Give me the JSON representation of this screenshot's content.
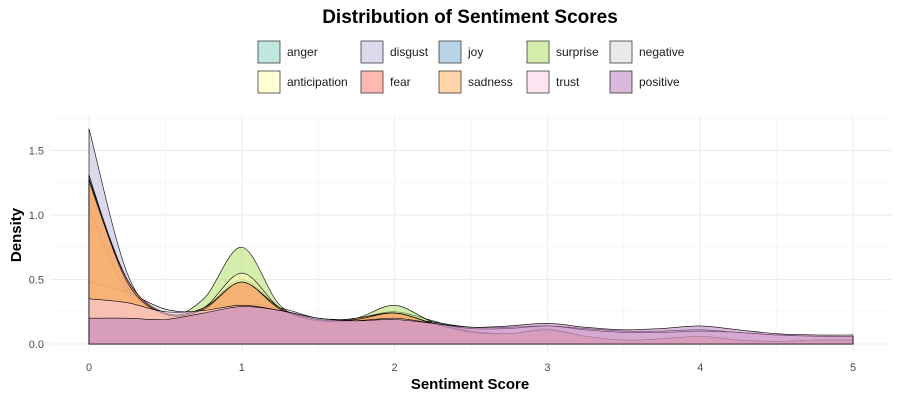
{
  "chart_data": {
    "type": "area",
    "subtype": "density",
    "title": "Distribution of Sentiment Scores",
    "xlabel": "Sentiment Score",
    "ylabel": "Density",
    "xlim": [
      0,
      5
    ],
    "ylim": [
      0,
      1.7
    ],
    "xticks": [
      0,
      1,
      2,
      3,
      4,
      5
    ],
    "yticks": [
      0.0,
      0.5,
      1.0,
      1.5
    ],
    "ytick_labels": [
      "0.0",
      "0.5",
      "1.0",
      "1.5"
    ],
    "grid": true,
    "legend_position": "top",
    "x": [
      0,
      0.25,
      0.5,
      0.75,
      1,
      1.25,
      1.5,
      1.75,
      2,
      2.25,
      2.5,
      2.75,
      3,
      3.25,
      3.5,
      3.75,
      4,
      4.25,
      4.5,
      4.75,
      5
    ],
    "series": [
      {
        "name": "anger",
        "color": "#8DD3C7",
        "values": [
          1.3,
          0.5,
          0.23,
          0.28,
          0.5,
          0.28,
          0.18,
          0.2,
          0.25,
          0.18,
          0.1,
          0.08,
          0.12,
          0.06,
          0.03,
          0.04,
          0.06,
          0.03,
          0.02,
          0.03,
          0.03
        ]
      },
      {
        "name": "disgust",
        "color": "#BEBADA",
        "values": [
          1.67,
          0.55,
          0.18,
          0.2,
          0.38,
          0.22,
          0.15,
          0.17,
          0.2,
          0.12,
          0.07,
          0.06,
          0.08,
          0.05,
          0.02,
          0.03,
          0.04,
          0.02,
          0.01,
          0.02,
          0.02
        ]
      },
      {
        "name": "joy",
        "color": "#80B1D3",
        "values": [
          1.31,
          0.45,
          0.21,
          0.27,
          0.45,
          0.27,
          0.18,
          0.19,
          0.23,
          0.15,
          0.09,
          0.08,
          0.1,
          0.06,
          0.03,
          0.04,
          0.05,
          0.03,
          0.02,
          0.03,
          0.03
        ]
      },
      {
        "name": "surprise",
        "color": "#B3DE69",
        "values": [
          1.05,
          0.4,
          0.21,
          0.35,
          0.75,
          0.3,
          0.18,
          0.2,
          0.3,
          0.17,
          0.09,
          0.08,
          0.1,
          0.05,
          0.03,
          0.04,
          0.05,
          0.03,
          0.02,
          0.03,
          0.03
        ]
      },
      {
        "name": "negative",
        "color": "#D9D9D9",
        "values": [
          0.48,
          0.4,
          0.27,
          0.25,
          0.31,
          0.28,
          0.2,
          0.19,
          0.2,
          0.17,
          0.13,
          0.13,
          0.14,
          0.12,
          0.1,
          0.1,
          0.11,
          0.09,
          0.07,
          0.06,
          0.06
        ]
      },
      {
        "name": "anticipation",
        "color": "#FFFFB3",
        "values": [
          1.28,
          0.5,
          0.23,
          0.28,
          0.55,
          0.28,
          0.18,
          0.19,
          0.24,
          0.16,
          0.09,
          0.08,
          0.11,
          0.06,
          0.03,
          0.04,
          0.06,
          0.03,
          0.02,
          0.03,
          0.03
        ]
      },
      {
        "name": "fear",
        "color": "#FB8072",
        "values": [
          1.25,
          0.5,
          0.24,
          0.28,
          0.48,
          0.28,
          0.18,
          0.2,
          0.24,
          0.16,
          0.1,
          0.08,
          0.11,
          0.06,
          0.03,
          0.04,
          0.06,
          0.03,
          0.02,
          0.03,
          0.03
        ]
      },
      {
        "name": "sadness",
        "color": "#FDB462",
        "values": [
          1.27,
          0.48,
          0.23,
          0.27,
          0.48,
          0.27,
          0.18,
          0.19,
          0.24,
          0.16,
          0.09,
          0.08,
          0.11,
          0.06,
          0.03,
          0.04,
          0.06,
          0.03,
          0.02,
          0.03,
          0.03
        ]
      },
      {
        "name": "trust",
        "color": "#FCCDE5",
        "values": [
          0.35,
          0.32,
          0.25,
          0.26,
          0.3,
          0.26,
          0.19,
          0.18,
          0.2,
          0.16,
          0.12,
          0.12,
          0.14,
          0.11,
          0.09,
          0.09,
          0.1,
          0.09,
          0.07,
          0.06,
          0.06
        ]
      },
      {
        "name": "positive",
        "color": "#BC80BD",
        "values": [
          0.2,
          0.2,
          0.19,
          0.24,
          0.29,
          0.26,
          0.2,
          0.18,
          0.19,
          0.16,
          0.13,
          0.14,
          0.16,
          0.13,
          0.11,
          0.12,
          0.14,
          0.11,
          0.08,
          0.07,
          0.07
        ]
      }
    ],
    "legend_order": [
      "anger",
      "disgust",
      "joy",
      "surprise",
      "negative",
      "anticipation",
      "fear",
      "sadness",
      "trust",
      "positive"
    ]
  }
}
